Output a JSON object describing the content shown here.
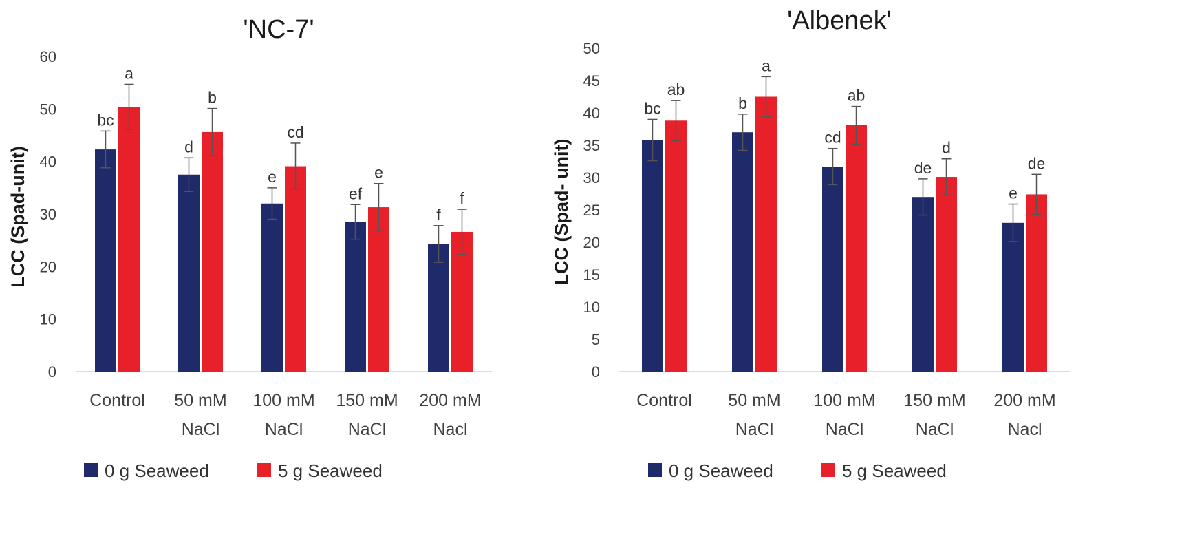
{
  "chart_data": [
    {
      "type": "bar",
      "title": "'NC-7'",
      "ylabel": "LCC (Spad-unit)",
      "ylim": [
        0,
        60
      ],
      "yticks": [
        0,
        10,
        20,
        30,
        40,
        50,
        60
      ],
      "categories": [
        [
          "Control"
        ],
        [
          "50 mM",
          "NaCl"
        ],
        [
          "100 mM",
          "NaCl"
        ],
        [
          "150 mM",
          "NaCl"
        ],
        [
          "200 mM",
          "Nacl"
        ]
      ],
      "series": [
        {
          "name": "0 g Seaweed",
          "color": "#1f2a6b",
          "values": [
            42.3,
            37.5,
            32.0,
            28.5,
            24.3
          ],
          "errors": [
            3.5,
            3.2,
            3.0,
            3.3,
            3.5
          ],
          "letters": [
            "bc",
            "d",
            "e",
            "ef",
            "f"
          ]
        },
        {
          "name": "5 g Seaweed",
          "color": "#e8202a",
          "values": [
            50.4,
            45.6,
            39.1,
            31.3,
            26.6
          ],
          "errors": [
            4.3,
            4.5,
            4.4,
            4.5,
            4.3
          ],
          "letters": [
            "a",
            "b",
            "cd",
            "e",
            "f"
          ]
        }
      ],
      "legend_position": "bottom-left"
    },
    {
      "type": "bar",
      "title": "'Albenek'",
      "ylabel": "LCC (Spad- unit)",
      "ylim": [
        0,
        50
      ],
      "yticks": [
        0,
        5,
        10,
        15,
        20,
        25,
        30,
        35,
        40,
        45,
        50
      ],
      "categories": [
        [
          "Control"
        ],
        [
          "50 mM",
          "NaCl"
        ],
        [
          "100 mM",
          "NaCl"
        ],
        [
          "150 mM",
          "NaCl"
        ],
        [
          "200 mM",
          "Nacl"
        ]
      ],
      "series": [
        {
          "name": "0 g Seaweed",
          "color": "#1f2a6b",
          "values": [
            35.8,
            37.0,
            31.7,
            27.0,
            23.0
          ],
          "errors": [
            3.2,
            2.8,
            2.8,
            2.8,
            2.9
          ],
          "letters": [
            "bc",
            "b",
            "cd",
            "de",
            "e"
          ]
        },
        {
          "name": "5 g Seaweed",
          "color": "#e8202a",
          "values": [
            38.8,
            42.5,
            38.1,
            30.1,
            27.4
          ],
          "errors": [
            3.1,
            3.1,
            2.9,
            2.8,
            3.1
          ],
          "letters": [
            "ab",
            "a",
            "ab",
            "d",
            "de"
          ]
        }
      ],
      "legend_position": "bottom-center"
    }
  ]
}
